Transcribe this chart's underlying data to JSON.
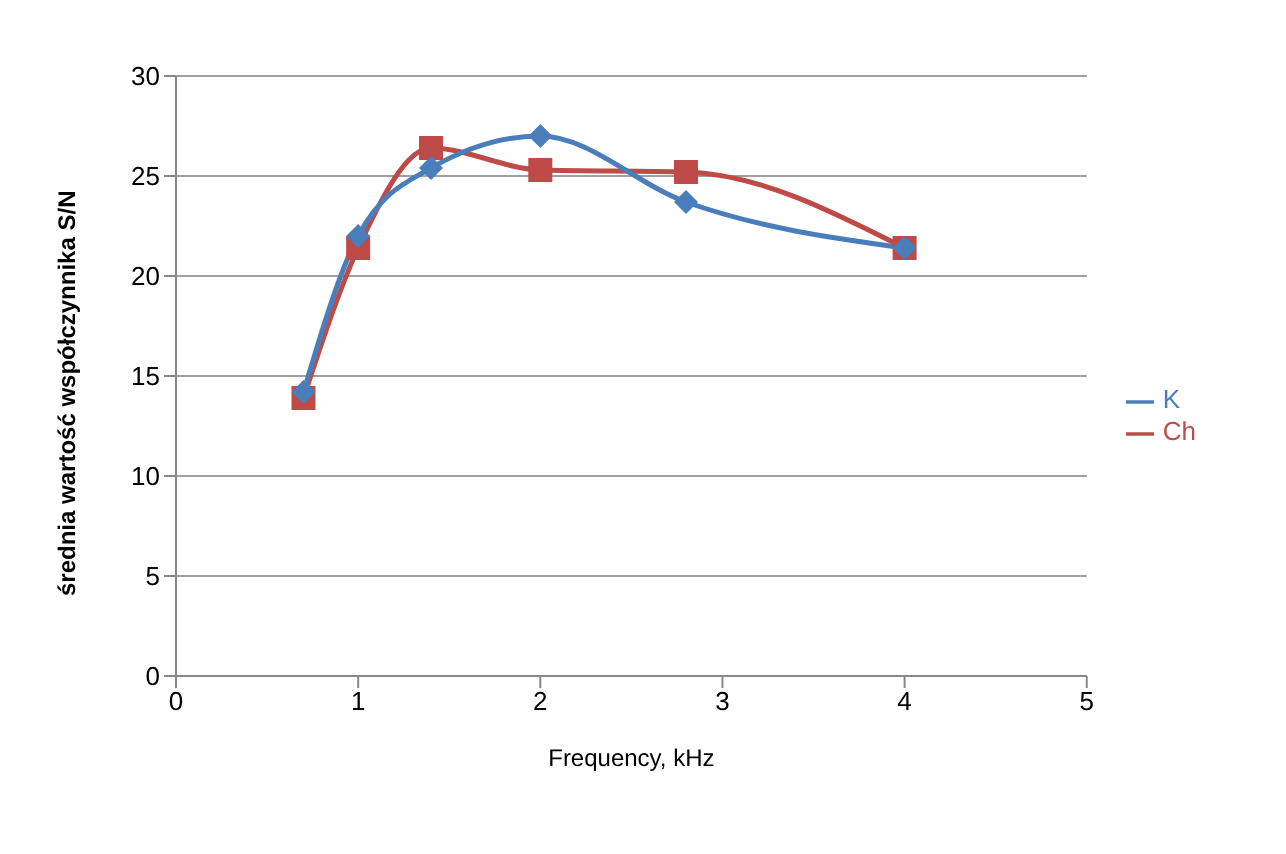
{
  "chart_data": {
    "type": "line",
    "xlabel": "Frequency, kHz",
    "ylabel": "średnia wartość współczynnika S/N",
    "xlim": [
      0,
      5
    ],
    "xticks": [
      0,
      1,
      2,
      3,
      4,
      5
    ],
    "ylim": [
      0,
      30
    ],
    "yticks": [
      0,
      5,
      10,
      15,
      20,
      25,
      30
    ],
    "grid": "y",
    "legend": "right",
    "x": [
      0.7,
      1,
      1.4,
      2,
      2.8,
      4
    ],
    "series": [
      {
        "name": "K",
        "color": "#4a7ebb",
        "marker": "diamond",
        "values": [
          14.2,
          22.0,
          25.4,
          27.0,
          23.7,
          21.4
        ]
      },
      {
        "name": "Ch",
        "color": "#be4b48",
        "marker": "square",
        "values": [
          13.9,
          21.4,
          26.4,
          25.3,
          25.2,
          21.4
        ]
      }
    ]
  }
}
